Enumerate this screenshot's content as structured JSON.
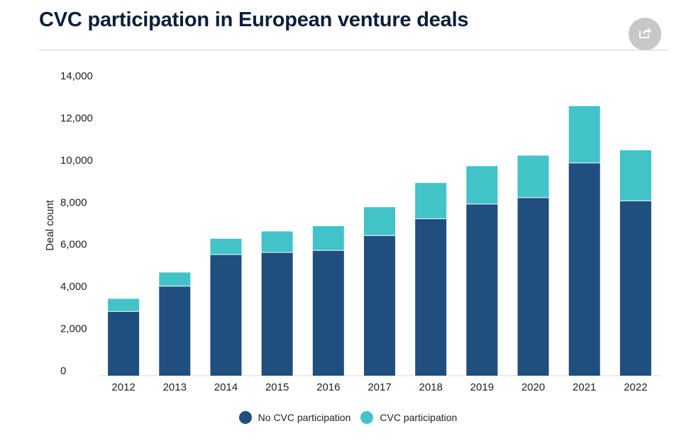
{
  "header": {
    "title": "CVC participation in European venture deals",
    "share_icon": "share-icon"
  },
  "colors": {
    "no_cvc": "#1f4e7f",
    "cvc": "#42c3c8",
    "title": "#0b1f3a",
    "share_bg": "#c7c7c7"
  },
  "chart_data": {
    "type": "bar",
    "stacked": true,
    "title": "CVC participation in European venture deals",
    "xlabel": "",
    "ylabel": "Deal count",
    "ylim": [
      0,
      14000
    ],
    "yticks": [
      0,
      2000,
      4000,
      6000,
      8000,
      10000,
      12000,
      14000
    ],
    "ytick_labels": [
      "0",
      "2,000",
      "4,000",
      "6,000",
      "8,000",
      "10,000",
      "12,000",
      "14,000"
    ],
    "grid": false,
    "legend_position": "bottom-center",
    "categories": [
      "2012",
      "2013",
      "2014",
      "2015",
      "2016",
      "2017",
      "2018",
      "2019",
      "2020",
      "2021",
      "2022"
    ],
    "series": [
      {
        "name": "No CVC participation",
        "color": "#1f4e7f",
        "values": [
          3050,
          4250,
          5750,
          5850,
          5950,
          6650,
          7450,
          8150,
          8450,
          10100,
          8300
        ]
      },
      {
        "name": "CVC participation",
        "color": "#42c3c8",
        "values": [
          600,
          650,
          750,
          1000,
          1150,
          1350,
          1700,
          1800,
          2000,
          2700,
          2400
        ]
      }
    ]
  }
}
